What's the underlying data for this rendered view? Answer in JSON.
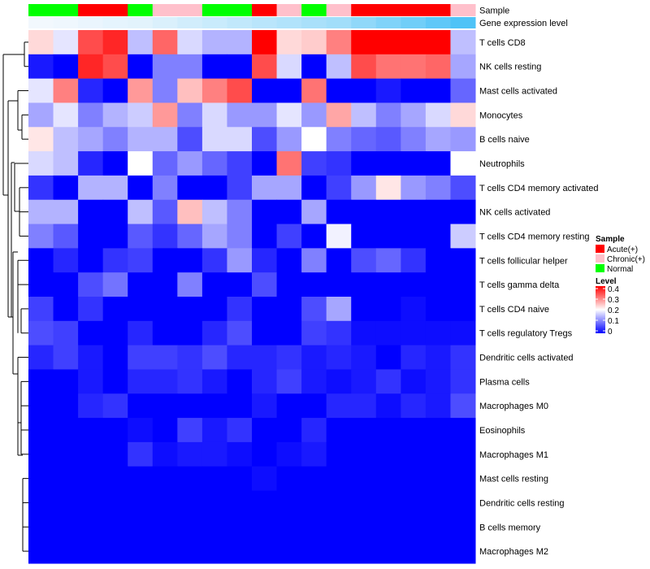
{
  "chart_data": {
    "type": "heatmap",
    "annotation_labels": [
      "Sample",
      "Gene expression level"
    ],
    "columns": {
      "sample": [
        "Normal",
        "Normal",
        "Acute(+)",
        "Acute(+)",
        "Normal",
        "Chronic(+)",
        "Chronic(+)",
        "Normal",
        "Normal",
        "Acute(+)",
        "Chronic(+)",
        "Normal",
        "Chronic(+)",
        "Acute(+)",
        "Acute(+)",
        "Acute(+)",
        "Acute(+)",
        "Chronic(+)"
      ],
      "expression": [
        0.0,
        0.02,
        0.05,
        0.08,
        0.1,
        0.15,
        0.2,
        0.25,
        0.3,
        0.35,
        0.4,
        0.45,
        0.5,
        0.6,
        0.7,
        0.8,
        0.9,
        1.0
      ]
    },
    "rows": [
      "T cells CD8",
      "NK cells resting",
      "Mast cells activated",
      "Monocytes",
      "B cells naive",
      "Neutrophils",
      "T cells CD4 memory activated",
      "NK cells activated",
      "T cells CD4 memory resting",
      "T cells follicular helper",
      "T cells gamma delta",
      "T cells CD4 naive",
      "T cells regulatory  Tregs",
      "Dendritic cells activated",
      "Plasma cells",
      "Macrophages M0",
      "Eosinophils",
      "Macrophages M1",
      "Mast cells resting",
      "Dendritic cells resting",
      "B cells memory",
      "Macrophages M2"
    ],
    "values": [
      [
        0.23,
        0.18,
        0.34,
        0.37,
        0.15,
        0.32,
        0.17,
        0.14,
        0.14,
        0.4,
        0.23,
        0.24,
        0.3,
        0.4,
        0.4,
        0.4,
        0.4,
        0.15
      ],
      [
        0.02,
        0.0,
        0.37,
        0.34,
        0.0,
        0.1,
        0.1,
        0.0,
        0.0,
        0.34,
        0.17,
        0.0,
        0.15,
        0.34,
        0.31,
        0.31,
        0.32,
        0.13
      ],
      [
        0.18,
        0.3,
        0.03,
        0.0,
        0.28,
        0.1,
        0.25,
        0.3,
        0.34,
        0.0,
        0.0,
        0.31,
        0.0,
        0.0,
        0.02,
        0.0,
        0.0,
        0.08
      ],
      [
        0.13,
        0.18,
        0.1,
        0.14,
        0.16,
        0.28,
        0.1,
        0.17,
        0.12,
        0.12,
        0.18,
        0.12,
        0.27,
        0.15,
        0.1,
        0.13,
        0.17,
        0.23
      ],
      [
        0.22,
        0.15,
        0.13,
        0.1,
        0.14,
        0.14,
        0.06,
        0.17,
        0.17,
        0.06,
        0.12,
        0.2,
        0.1,
        0.08,
        0.07,
        0.1,
        0.13,
        0.12
      ],
      [
        0.17,
        0.15,
        0.03,
        0.0,
        0.2,
        0.08,
        0.12,
        0.08,
        0.05,
        0.0,
        0.31,
        0.05,
        0.04,
        0.0,
        0.0,
        0.0,
        0.0,
        0.2
      ],
      [
        0.04,
        0.0,
        0.14,
        0.14,
        0.0,
        0.1,
        0.0,
        0.0,
        0.05,
        0.13,
        0.13,
        0.0,
        0.05,
        0.12,
        0.22,
        0.12,
        0.1,
        0.06
      ],
      [
        0.14,
        0.14,
        0.0,
        0.0,
        0.15,
        0.07,
        0.25,
        0.15,
        0.1,
        0.0,
        0.0,
        0.13,
        0.0,
        0.0,
        0.0,
        0.0,
        0.0,
        0.0
      ],
      [
        0.1,
        0.07,
        0.0,
        0.0,
        0.07,
        0.04,
        0.08,
        0.13,
        0.1,
        0.0,
        0.05,
        0.0,
        0.19,
        0.0,
        0.0,
        0.0,
        0.0,
        0.16
      ],
      [
        0.0,
        0.03,
        0.0,
        0.04,
        0.05,
        0.0,
        0.0,
        0.04,
        0.12,
        0.03,
        0.0,
        0.1,
        0.0,
        0.06,
        0.08,
        0.04,
        0.0,
        0.0
      ],
      [
        0.0,
        0.0,
        0.06,
        0.09,
        0.0,
        0.0,
        0.1,
        0.0,
        0.0,
        0.06,
        0.0,
        0.0,
        0.0,
        0.0,
        0.0,
        0.0,
        0.0,
        0.0
      ],
      [
        0.05,
        0.0,
        0.04,
        0.0,
        0.0,
        0.0,
        0.0,
        0.0,
        0.04,
        0.0,
        0.0,
        0.06,
        0.13,
        0.0,
        0.0,
        0.01,
        0.0,
        0.0
      ],
      [
        0.06,
        0.05,
        0.0,
        0.0,
        0.03,
        0.0,
        0.0,
        0.03,
        0.06,
        0.0,
        0.0,
        0.05,
        0.04,
        0.01,
        0.01,
        0.01,
        0.01,
        0.01
      ],
      [
        0.03,
        0.05,
        0.02,
        0.0,
        0.05,
        0.05,
        0.04,
        0.06,
        0.03,
        0.03,
        0.04,
        0.02,
        0.03,
        0.02,
        0.0,
        0.03,
        0.02,
        0.04
      ],
      [
        0.0,
        0.0,
        0.02,
        0.0,
        0.03,
        0.03,
        0.04,
        0.02,
        0.0,
        0.03,
        0.05,
        0.02,
        0.01,
        0.02,
        0.04,
        0.01,
        0.02,
        0.04
      ],
      [
        0.0,
        0.0,
        0.03,
        0.04,
        0.0,
        0.0,
        0.0,
        0.0,
        0.0,
        0.02,
        0.0,
        0.0,
        0.03,
        0.03,
        0.01,
        0.03,
        0.02,
        0.06
      ],
      [
        0.0,
        0.0,
        0.0,
        0.0,
        0.01,
        0.0,
        0.05,
        0.02,
        0.04,
        0.0,
        0.0,
        0.03,
        0.0,
        0.0,
        0.0,
        0.0,
        0.0,
        0.0
      ],
      [
        0.0,
        0.0,
        0.0,
        0.0,
        0.04,
        0.01,
        0.02,
        0.02,
        0.01,
        0.0,
        0.01,
        0.02,
        0.0,
        0.0,
        0.0,
        0.0,
        0.0,
        0.0
      ],
      [
        0.0,
        0.0,
        0.0,
        0.0,
        0.0,
        0.0,
        0.0,
        0.0,
        0.0,
        0.01,
        0.0,
        0.0,
        0.0,
        0.0,
        0.0,
        0.0,
        0.0,
        0.0
      ],
      [
        0.0,
        0.0,
        0.0,
        0.0,
        0.0,
        0.0,
        0.0,
        0.0,
        0.0,
        0.0,
        0.0,
        0.0,
        0.0,
        0.0,
        0.0,
        0.0,
        0.0,
        0.0
      ],
      [
        0.0,
        0.0,
        0.0,
        0.0,
        0.0,
        0.0,
        0.0,
        0.0,
        0.0,
        0.0,
        0.0,
        0.0,
        0.0,
        0.0,
        0.0,
        0.0,
        0.0,
        0.0
      ],
      [
        0.0,
        0.0,
        0.0,
        0.0,
        0.0,
        0.0,
        0.0,
        0.0,
        0.0,
        0.0,
        0.0,
        0.0,
        0.0,
        0.0,
        0.0,
        0.0,
        0.0,
        0.0
      ]
    ],
    "color_scale": {
      "min": 0,
      "max": 0.4,
      "stops": [
        {
          "value": 0,
          "color": "#0000ff"
        },
        {
          "value": 0.2,
          "color": "#ffffff"
        },
        {
          "value": 0.4,
          "color": "#ff0000"
        }
      ]
    },
    "expression_colors": [
      "#f2f8fd",
      "#4fc3f7"
    ],
    "legend": {
      "sample": {
        "title": "Sample",
        "items": [
          {
            "label": "Acute(+)",
            "color": "#ff0000"
          },
          {
            "label": "Chronic(+)",
            "color": "#ffc0cb"
          },
          {
            "label": "Normal",
            "color": "#00ff00"
          }
        ]
      },
      "level": {
        "title": "Level",
        "ticks": [
          "0",
          "0.1",
          "0.2",
          "0.3",
          "0.4"
        ]
      }
    },
    "dendrogram": "row"
  }
}
